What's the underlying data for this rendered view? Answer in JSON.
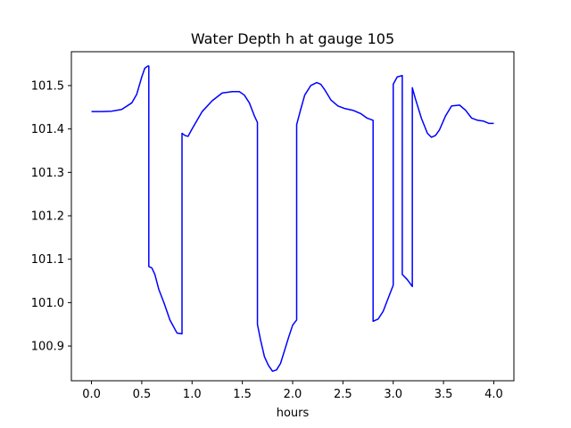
{
  "chart_data": {
    "type": "line",
    "title": "Water Depth h at gauge 105",
    "xlabel": "hours",
    "ylabel": "",
    "xlim": [
      -0.2,
      4.2
    ],
    "ylim": [
      100.82,
      101.578
    ],
    "xticks": [
      0.0,
      0.5,
      1.0,
      1.5,
      2.0,
      2.5,
      3.0,
      3.5,
      4.0
    ],
    "xtick_labels": [
      "0.0",
      "0.5",
      "1.0",
      "1.5",
      "2.0",
      "2.5",
      "3.0",
      "3.5",
      "4.0"
    ],
    "yticks": [
      100.9,
      101.0,
      101.1,
      101.2,
      101.3,
      101.4,
      101.5
    ],
    "ytick_labels": [
      "100.9",
      "101.0",
      "101.1",
      "101.2",
      "101.3",
      "101.4",
      "101.5"
    ],
    "grid": false,
    "line_color": "#0000ff",
    "series": [
      {
        "x": [
          0.0,
          0.1,
          0.2,
          0.3,
          0.4,
          0.45,
          0.5,
          0.53,
          0.56,
          0.57,
          0.57,
          0.6,
          0.63,
          0.67,
          0.72,
          0.78,
          0.85,
          0.9,
          0.9,
          0.93,
          0.96,
          1.0,
          1.1,
          1.2,
          1.3,
          1.4,
          1.47,
          1.52,
          1.57,
          1.62,
          1.65,
          1.65,
          1.68,
          1.72,
          1.76,
          1.8,
          1.84,
          1.88,
          1.92,
          1.96,
          2.0,
          2.04,
          2.04,
          2.08,
          2.12,
          2.18,
          2.24,
          2.28,
          2.32,
          2.38,
          2.45,
          2.52,
          2.6,
          2.68,
          2.74,
          2.8,
          2.8,
          2.85,
          2.9,
          2.95,
          3.0,
          3.0,
          3.04,
          3.09,
          3.09,
          3.14,
          3.19,
          3.19,
          3.22,
          3.28,
          3.34,
          3.38,
          3.42,
          3.46,
          3.52,
          3.58,
          3.66,
          3.72,
          3.78,
          3.84,
          3.9,
          3.95,
          4.0
        ],
        "y": [
          101.44,
          101.44,
          101.441,
          101.445,
          101.46,
          101.48,
          101.52,
          101.54,
          101.545,
          101.545,
          101.083,
          101.08,
          101.065,
          101.03,
          101.0,
          100.96,
          100.93,
          100.928,
          101.39,
          101.385,
          101.383,
          101.4,
          101.44,
          101.465,
          101.483,
          101.486,
          101.486,
          101.478,
          101.46,
          101.43,
          101.415,
          100.95,
          100.915,
          100.875,
          100.855,
          100.842,
          100.845,
          100.86,
          100.89,
          100.92,
          100.948,
          100.96,
          101.41,
          101.445,
          101.478,
          101.5,
          101.507,
          101.503,
          101.49,
          101.467,
          101.453,
          101.447,
          101.443,
          101.435,
          101.425,
          101.42,
          100.957,
          100.962,
          100.98,
          101.01,
          101.04,
          101.503,
          101.52,
          101.523,
          101.065,
          101.053,
          101.037,
          101.495,
          101.47,
          101.425,
          101.39,
          101.381,
          101.385,
          101.398,
          101.43,
          101.453,
          101.455,
          101.443,
          101.425,
          101.42,
          101.418,
          101.413,
          101.413
        ]
      }
    ]
  }
}
